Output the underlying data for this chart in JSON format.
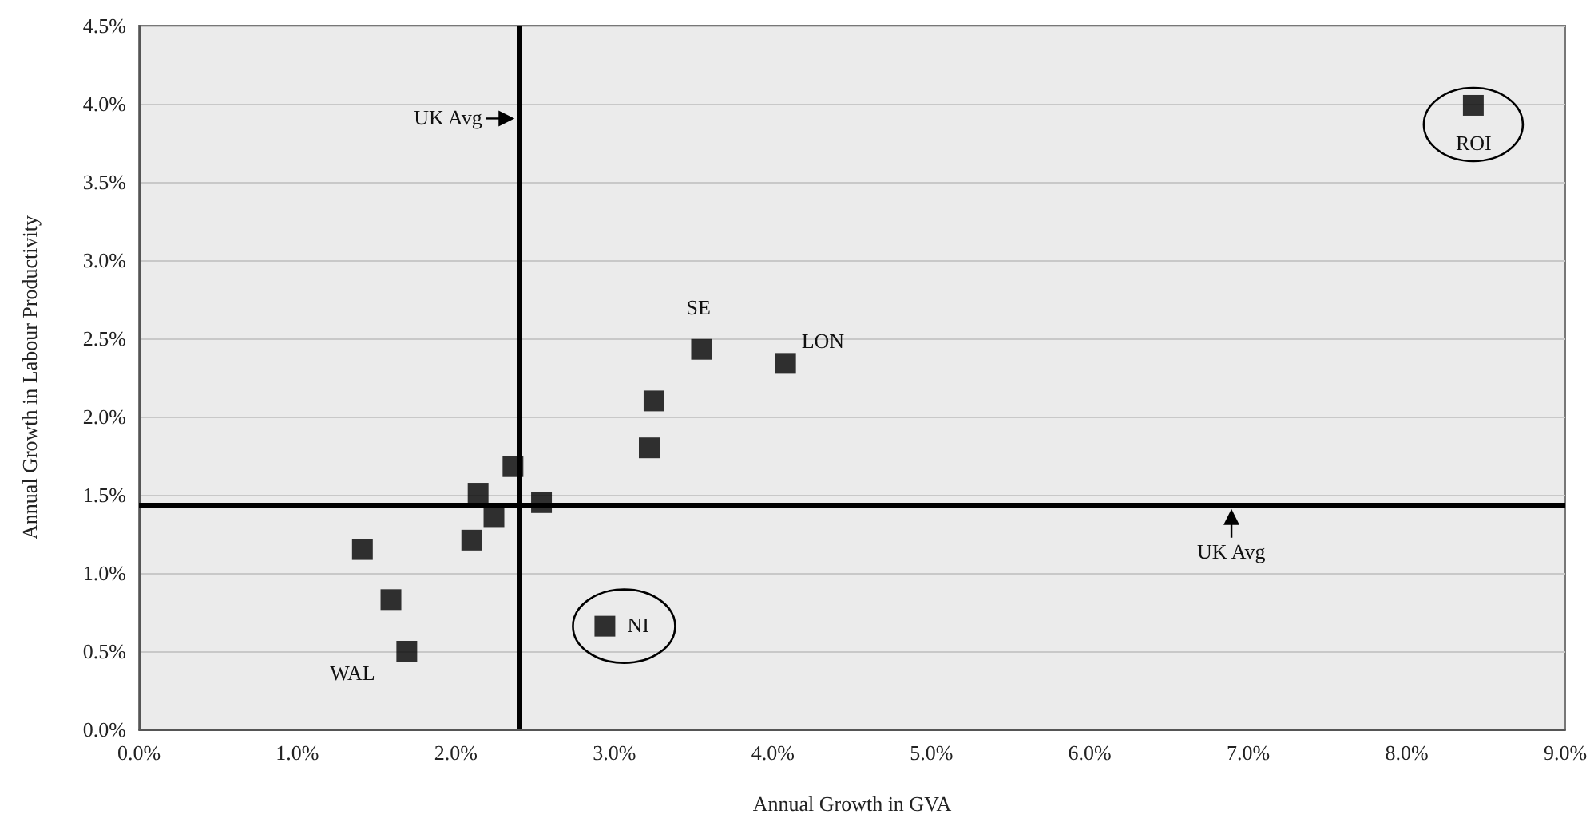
{
  "chart_data": {
    "type": "scatter",
    "xlabel": "Annual Growth in GVA",
    "ylabel": "Annual Growth in Labour Productivity",
    "x": [
      8.42,
      3.55,
      4.08,
      3.25,
      3.22,
      2.36,
      2.14,
      2.54,
      2.24,
      2.1,
      1.41,
      1.59,
      1.69,
      2.94
    ],
    "values": [
      3.99,
      2.43,
      2.34,
      2.1,
      1.8,
      1.68,
      1.51,
      1.45,
      1.36,
      1.21,
      1.15,
      0.83,
      0.5,
      0.66
    ],
    "color": "#000000",
    "marker": "square",
    "xlim": [
      0,
      9
    ],
    "ylim": [
      0,
      4.5
    ],
    "xticks": [
      {
        "value": 0,
        "label": "0.0%"
      },
      {
        "value": 1,
        "label": "1.0%"
      },
      {
        "value": 2,
        "label": "2.0%"
      },
      {
        "value": 3,
        "label": "3.0%"
      },
      {
        "value": 4,
        "label": "4.0%"
      },
      {
        "value": 5,
        "label": "5.0%"
      },
      {
        "value": 6,
        "label": "6.0%"
      },
      {
        "value": 7,
        "label": "7.0%"
      },
      {
        "value": 8,
        "label": "8.0%"
      },
      {
        "value": 9,
        "label": "9.0%"
      }
    ],
    "yticks": [
      {
        "value": 0,
        "label": "0.0%"
      },
      {
        "value": 0.5,
        "label": "0.5%"
      },
      {
        "value": 1,
        "label": "1.0%"
      },
      {
        "value": 1.5,
        "label": "1.5%"
      },
      {
        "value": 2,
        "label": "2.0%"
      },
      {
        "value": 2.5,
        "label": "2.5%"
      },
      {
        "value": 3,
        "label": "3.0%"
      },
      {
        "value": 3.5,
        "label": "3.5%"
      },
      {
        "value": 4,
        "label": "4.0%"
      },
      {
        "value": 4.5,
        "label": "4.5%"
      }
    ],
    "grid": "y",
    "ref_lines": [
      {
        "axis": "x",
        "value": 2.4,
        "label": "UK Avg",
        "color": "#000000"
      },
      {
        "axis": "y",
        "value": 1.44,
        "label": "UK Avg",
        "color": "#000000"
      }
    ],
    "annotations": [
      {
        "text": "ROI",
        "x": 8.42,
        "y": 3.99
      },
      {
        "text": "SE",
        "x": 3.55,
        "y": 2.43
      },
      {
        "text": "LON",
        "x": 4.08,
        "y": 2.34
      },
      {
        "text": "NI",
        "x": 2.94,
        "y": 0.66
      },
      {
        "text": "WAL",
        "x": 1.69,
        "y": 0.5
      }
    ]
  }
}
